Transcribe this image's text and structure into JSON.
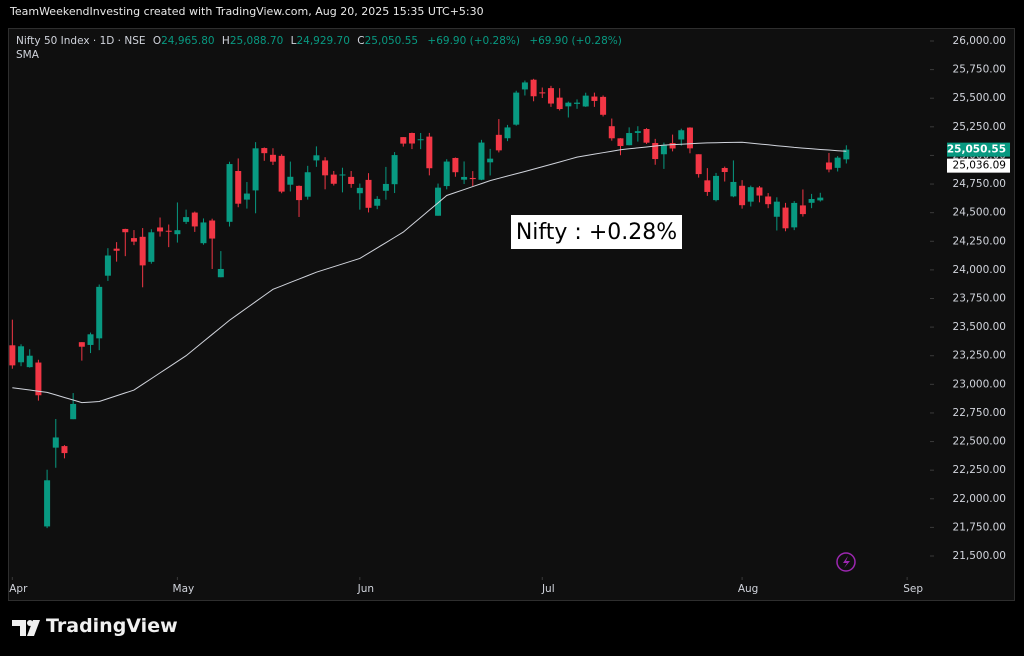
{
  "header": "TeamWeekendInvesting created with TradingView.com, Aug 20, 2025 15:35 UTC+5:30",
  "footer": {
    "logo": "TradingView"
  },
  "chart_data": {
    "type": "candlestick",
    "symbol": "Nifty 50 Index · 1D · NSE",
    "legend": {
      "open_key": "O",
      "open": "24,965.80",
      "high_key": "H",
      "high": "25,088.70",
      "low_key": "L",
      "low": "24,929.70",
      "close_key": "C",
      "close": "25,050.55",
      "change": [
        "+69.90 (+0.28%)",
        "+69.90 (+0.28%)"
      ]
    },
    "annotation": "Nifty : +0.28%",
    "up_color": "#089981",
    "down_color": "#f23645",
    "open": [
      23341.1,
      23192.6,
      23150.3,
      23190.4,
      21758.4,
      22446.75,
      22460.3,
      22695.4,
      23368.35,
      23344.1,
      23401.85,
      23949.15,
      24185.4,
      24357.6,
      24277.9,
      24289,
      24070.25,
      24370.7,
      24342.05,
      24311.9,
      24419.5,
      24500.75,
      24233.3,
      24431.5,
      23935.75,
      24420.1,
      24864.05,
      24613.8,
      24694.45,
      25064.65,
      25005.35,
      24996.2,
      24744.25,
      24733.95,
      24639.5,
      24956.65,
      24956.3,
      24832.5,
      24825.1,
      24812.6,
      24669.7,
      24786.3,
      24560.45,
      24691.2,
      24748.7,
      25160.1,
      25196.05,
      25134.15,
      25164.45,
      24473,
      24732.35,
      24977.85,
      24788.35,
      24803.25,
      24787.65,
      24939.75,
      25179.9,
      25150.35,
      25268.95,
      25576.65,
      25661.65,
      25551.35,
      25588.3,
      25505.1,
      25428.85,
      25450.45,
      25427.85,
      25514.6,
      25511.65,
      25255.5,
      25149.5,
      25089.5,
      25196.6,
      25230.75,
      25108.55,
      25010.35,
      25108.2,
      25139.35,
      25243.3,
      25010.35,
      24782.45,
      24609.65,
      24890.4,
      24642.25,
      24734.9,
      24596.15,
      24720.25,
      24641.35,
      24464.2,
      24544.25,
      24371.5,
      24563.35,
      24586.2,
      24607.25,
      24938.2,
      24891.35,
      24965.8
    ],
    "high": [
      23565.15,
      23350,
      23306.5,
      23214.7,
      22254,
      22697.2,
      22468.7,
      22923.9,
      23368.35,
      23452.2,
      23872.35,
      24189.55,
      24242.6,
      24359.3,
      24347.85,
      24365.45,
      24355.1,
      24457.65,
      24396.15,
      24589.15,
      24526.4,
      24509.65,
      24449.6,
      24447.25,
      24164.25,
      24944.8,
      24973.8,
      24767.55,
      25116.25,
      25070,
      25062.95,
      25010.35,
      24946.2,
      24737.5,
      24909.05,
      25079.2,
      24984.6,
      24864.25,
      24892.6,
      24863.95,
      24754.4,
      24845.1,
      24644.25,
      24899.85,
      25029.5,
      25160.1,
      25199.3,
      25196.2,
      25196.65,
      24754.35,
      24967.1,
      24982.05,
      24947.55,
      24863.1,
      25136.2,
      25057,
      25317.7,
      25266.8,
      25565.3,
      25654.2,
      25669.35,
      25593.4,
      25608.1,
      25587.5,
      25470.25,
      25489.8,
      25548.05,
      25548.7,
      25524.05,
      25322.45,
      25151.1,
      25245.2,
      25255.3,
      25238.35,
      25144.6,
      25111.95,
      25182,
      25233.5,
      25246.25,
      25010.35,
      24889.2,
      24847.15,
      24902.3,
      24956.5,
      24784.15,
      24736.25,
      24733.1,
      24671.4,
      24634.2,
      24585.5,
      24600.85,
      24702.6,
      24664,
      24673.65,
      25022,
      24993.95,
      25088.7
    ],
    "low": [
      23136.4,
      23158.45,
      23145.8,
      22857.45,
      21743.65,
      22270.85,
      22353.25,
      22695.4,
      23207,
      23273.05,
      23298.55,
      23903.65,
      24072,
      24119.95,
      24216.15,
      23847.85,
      24054.05,
      24290.75,
      24198.75,
      24238.5,
      24400.65,
      24331.8,
      24220,
      24008,
      23935.75,
      24378.85,
      24547.5,
      24535.55,
      24494.45,
      24953.05,
      24916.65,
      24669.7,
      24685.35,
      24462.4,
      24614.05,
      24900.5,
      24704.1,
      24737.05,
      24677.3,
      24717.4,
      24526.15,
      24502.15,
      24530.45,
      24613.7,
      24671.45,
      25077.15,
      25055.45,
      25054.9,
      24825.9,
      24473,
      24703.6,
      24813.7,
      24750.45,
      24733.4,
      24783.65,
      24824.85,
      25026.45,
      25125.05,
      25259.9,
      25523.55,
      25473.3,
      25501.8,
      25424.15,
      25392.9,
      25331.65,
      25407.25,
      25424.15,
      25424.35,
      25340.45,
      25129,
      25001.95,
      25088.45,
      25121.05,
      25101,
      24918.65,
      24882.3,
      25035.55,
      25085.5,
      25018.7,
      24806.35,
      24646.6,
      24598.6,
      24771.95,
      24635,
      24535.05,
      24554,
      24590.3,
      24539.2,
      24344.15,
      24337.5,
      24347.5,
      24465.65,
      24539.25,
      24596.9,
      24852.5,
      24859.75,
      24929.7
    ],
    "close": [
      23165.7,
      23332.35,
      23250.1,
      22904.45,
      22161.6,
      22535.85,
      22399.15,
      22828.55,
      23328.55,
      23437.2,
      23851.65,
      24125.55,
      24167.25,
      24328.95,
      24246.7,
      24039.35,
      24328.5,
      24335.95,
      24334.2,
      24346.7,
      24461.15,
      24379.6,
      24414.4,
      24273.8,
      24008,
      24924.7,
      24578.35,
      24666.9,
      25062.1,
      25019.8,
      24945.45,
      24683.9,
      24813.45,
      24609.7,
      24853.15,
      25001.15,
      24826.2,
      24752.45,
      24833.6,
      24750.7,
      24716.6,
      24542.5,
      24620.2,
      24750.9,
      25003.05,
      25103.2,
      25104.25,
      25141.4,
      24888.2,
      24718.6,
      24946.5,
      24853.4,
      24812.05,
      24793.25,
      25112.4,
      24971.9,
      25044.35,
      25244.75,
      25549,
      25637.8,
      25517.05,
      25541.8,
      25453.4,
      25405.3,
      25461,
      25461.3,
      25522.5,
      25476.1,
      25355.25,
      25149.85,
      25082.3,
      25195.8,
      25212.05,
      25111.45,
      24968.4,
      25090.7,
      25060.9,
      25219.9,
      25062.1,
      24837,
      24680.9,
      24821.1,
      24855.05,
      24768.35,
      24565.35,
      24722.75,
      24649.55,
      24574.2,
      24596.15,
      24363.3,
      24585.05,
      24487.4,
      24619.35,
      24631.3,
      24876.95,
      24980.65,
      25050.55
    ],
    "sma": {
      "name": "SMA",
      "color": "#d1d4dc",
      "values": [
        22970,
        22960,
        22950,
        22940,
        22930,
        22908,
        22885,
        22863,
        22840,
        22845,
        22850,
        22875,
        22900,
        22925,
        22950,
        23000,
        23050,
        23100,
        23150,
        23200,
        23250,
        23312,
        23374,
        23436,
        23498,
        23560,
        23614,
        23668,
        23722,
        23776,
        23830,
        23860,
        23890,
        23920,
        23950,
        23980,
        24004,
        24028,
        24052,
        24076,
        24100,
        24146,
        24192,
        24238,
        24284,
        24330,
        24394,
        24458,
        24522,
        24586,
        24650,
        24676,
        24702,
        24728,
        24754,
        24780,
        24800,
        24820,
        24840,
        24860,
        24880,
        24901,
        24922,
        24943,
        24964,
        24985,
        24998,
        25011,
        25024,
        25037,
        25050,
        25058,
        25066,
        25074,
        25082,
        25090,
        25094,
        25098,
        25102,
        25106,
        25110,
        25111,
        25113,
        25114,
        25115,
        25108,
        25100,
        25093,
        25085,
        25078,
        25070,
        25064,
        25058,
        25052,
        25047,
        25041,
        25036.09
      ]
    },
    "last_price": {
      "value": 25050.55,
      "label": "25,050.55",
      "color": "#089981"
    },
    "sma_last": {
      "value": 25036.09,
      "label": "25,036.09"
    },
    "xlim": [
      -0.5,
      105.4
    ],
    "xticks": [
      {
        "value": 0,
        "label": "Apr"
      },
      {
        "value": 19,
        "label": "May"
      },
      {
        "value": 40,
        "label": "Jun"
      },
      {
        "value": 61,
        "label": "Jul"
      },
      {
        "value": 84,
        "label": "Aug"
      },
      {
        "value": 103,
        "label": "Sep"
      }
    ],
    "ylim": [
      21334,
      26096
    ],
    "yticks": [
      {
        "value": 21500,
        "label": "21,500.00"
      },
      {
        "value": 21750,
        "label": "21,750.00"
      },
      {
        "value": 22000,
        "label": "22,000.00"
      },
      {
        "value": 22250,
        "label": "22,250.00"
      },
      {
        "value": 22500,
        "label": "22,500.00"
      },
      {
        "value": 22750,
        "label": "22,750.00"
      },
      {
        "value": 23000,
        "label": "23,000.00"
      },
      {
        "value": 23250,
        "label": "23,250.00"
      },
      {
        "value": 23500,
        "label": "23,500.00"
      },
      {
        "value": 23750,
        "label": "23,750.00"
      },
      {
        "value": 24000,
        "label": "24,000.00"
      },
      {
        "value": 24250,
        "label": "24,250.00"
      },
      {
        "value": 24500,
        "label": "24,500.00"
      },
      {
        "value": 24750,
        "label": "24,750.00"
      },
      {
        "value": 25000,
        "label": "25,000.00"
      },
      {
        "value": 25250,
        "label": "25,250.00"
      },
      {
        "value": 25500,
        "label": "25,500.00"
      },
      {
        "value": 25750,
        "label": "25,750.00"
      },
      {
        "value": 26000,
        "label": "26,000.00"
      }
    ],
    "grid": false
  }
}
